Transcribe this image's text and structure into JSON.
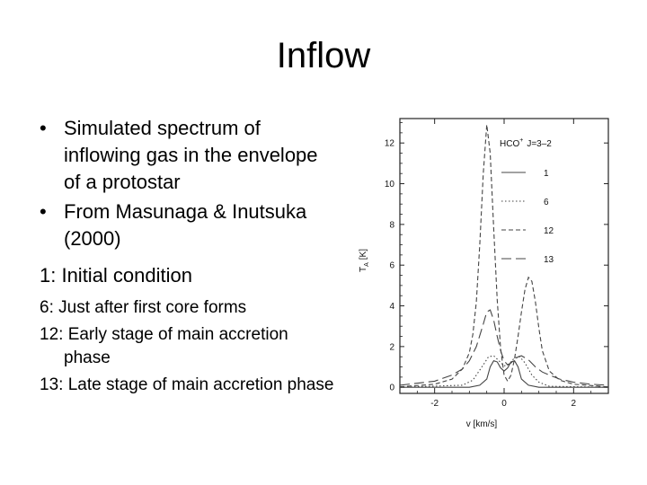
{
  "slide": {
    "title": "Inflow",
    "bullets": [
      "Simulated spectrum of inflowing gas in the envelope of a protostar",
      "From Masunaga & Inutsuka (2000)"
    ],
    "bullet_symbol": "•",
    "notes": [
      "1: Initial condition",
      "6: Just after first core forms",
      "12: Early stage of main accretion phase",
      "13: Late stage of main accretion phase"
    ]
  },
  "chart_data": {
    "type": "line",
    "title": "",
    "legend_title_main": "HCO",
    "legend_title_sup": "+",
    "legend_title_rest": "J=3–2",
    "legend_position": "top-right",
    "xlabel": "v [km/s]",
    "ylabel_main": "T",
    "ylabel_sub": "A",
    "ylabel_unit": "[K]",
    "xlim": [
      -3,
      3
    ],
    "ylim": [
      -0.3,
      13.2
    ],
    "xticks": [
      "-2",
      "0",
      "2"
    ],
    "yticks": [
      "0",
      "2",
      "4",
      "6",
      "8",
      "10",
      "12"
    ],
    "grid": false,
    "series": [
      {
        "name": "1",
        "dash": "solid",
        "x": [
          -3,
          -1.0,
          -0.7,
          -0.5,
          -0.4,
          -0.3,
          -0.2,
          -0.1,
          0.0,
          0.1,
          0.2,
          0.3,
          0.4,
          0.5,
          0.7,
          1.0,
          3
        ],
        "y": [
          0.0,
          0.0,
          0.1,
          0.4,
          1.0,
          1.3,
          1.25,
          0.95,
          0.8,
          0.95,
          1.25,
          1.3,
          1.0,
          0.4,
          0.1,
          0.0,
          0.0
        ]
      },
      {
        "name": "6",
        "dash": "dotted",
        "x": [
          -3,
          -1.2,
          -0.9,
          -0.6,
          -0.45,
          -0.3,
          -0.15,
          0.0,
          0.15,
          0.3,
          0.45,
          0.6,
          0.8,
          1.0,
          1.3,
          3
        ],
        "y": [
          0.0,
          0.1,
          0.35,
          1.1,
          1.5,
          1.55,
          1.3,
          1.05,
          1.15,
          1.45,
          1.5,
          1.2,
          0.6,
          0.25,
          0.05,
          0.0
        ]
      },
      {
        "name": "12",
        "dash": "dashed",
        "x": [
          -3,
          -2.0,
          -1.5,
          -1.2,
          -1.0,
          -0.9,
          -0.8,
          -0.7,
          -0.6,
          -0.5,
          -0.4,
          -0.3,
          -0.2,
          -0.1,
          0.0,
          0.1,
          0.2,
          0.3,
          0.4,
          0.5,
          0.6,
          0.7,
          0.8,
          0.9,
          1.0,
          1.1,
          1.3,
          1.6,
          2.0,
          3
        ],
        "y": [
          0.02,
          0.15,
          0.4,
          0.9,
          1.7,
          2.6,
          4.2,
          7.0,
          10.5,
          12.9,
          11.5,
          7.8,
          4.3,
          1.9,
          0.6,
          0.3,
          0.6,
          1.4,
          2.5,
          3.7,
          4.8,
          5.4,
          5.2,
          4.2,
          2.9,
          1.8,
          0.8,
          0.35,
          0.15,
          0.02
        ]
      },
      {
        "name": "13",
        "dash": "longdash",
        "x": [
          -3,
          -2.0,
          -1.5,
          -1.2,
          -1.0,
          -0.8,
          -0.6,
          -0.5,
          -0.4,
          -0.3,
          -0.2,
          -0.1,
          0.0,
          0.1,
          0.2,
          0.3,
          0.4,
          0.5,
          0.7,
          0.9,
          1.1,
          1.3,
          1.6,
          2.0,
          2.5,
          3
        ],
        "y": [
          0.1,
          0.3,
          0.6,
          0.9,
          1.3,
          2.0,
          3.1,
          3.7,
          3.8,
          3.3,
          2.5,
          1.8,
          1.3,
          1.1,
          1.2,
          1.35,
          1.5,
          1.55,
          1.35,
          1.0,
          0.75,
          0.6,
          0.4,
          0.25,
          0.15,
          0.1
        ]
      }
    ]
  }
}
